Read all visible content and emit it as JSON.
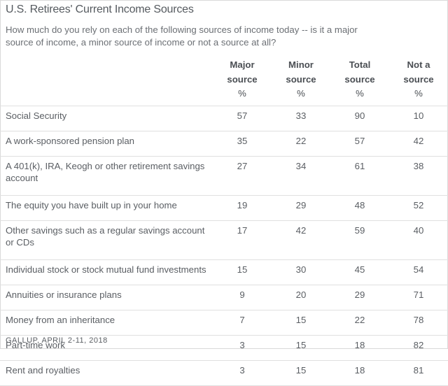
{
  "chart_data": {
    "type": "table",
    "title": "U.S. Retirees' Current Income Sources",
    "question": "How much do you rely on each of the following sources of income today -- is it a major source of income, a minor source of income or not a source at all?",
    "columns": [
      {
        "line1": "Major",
        "line2": "source",
        "unit": "%"
      },
      {
        "line1": "Minor",
        "line2": "source",
        "unit": "%"
      },
      {
        "line1": "Total",
        "line2": "source",
        "unit": "%"
      },
      {
        "line1": "Not a",
        "line2": "source",
        "unit": "%"
      }
    ],
    "rows": [
      {
        "label": "Social Security",
        "values": [
          "57",
          "33",
          "90",
          "10"
        ]
      },
      {
        "label": "A work-sponsored pension plan",
        "values": [
          "35",
          "22",
          "57",
          "42"
        ]
      },
      {
        "label": "A 401(k), IRA, Keogh or other retirement savings account",
        "values": [
          "27",
          "34",
          "61",
          "38"
        ]
      },
      {
        "label": "The equity you have built up in your home",
        "values": [
          "19",
          "29",
          "48",
          "52"
        ]
      },
      {
        "label": "Other savings such as a regular savings account or CDs",
        "values": [
          "17",
          "42",
          "59",
          "40"
        ]
      },
      {
        "label": "Individual stock or stock mutual fund investments",
        "values": [
          "15",
          "30",
          "45",
          "54"
        ]
      },
      {
        "label": "Annuities or insurance plans",
        "values": [
          "9",
          "20",
          "29",
          "71"
        ]
      },
      {
        "label": "Money from an inheritance",
        "values": [
          "7",
          "15",
          "22",
          "78"
        ]
      },
      {
        "label": "Part-time work",
        "values": [
          "3",
          "15",
          "18",
          "82"
        ]
      },
      {
        "label": "Rent and royalties",
        "values": [
          "3",
          "15",
          "18",
          "81"
        ]
      }
    ],
    "source": "GALLUP, APRIL 2-11, 2018"
  }
}
